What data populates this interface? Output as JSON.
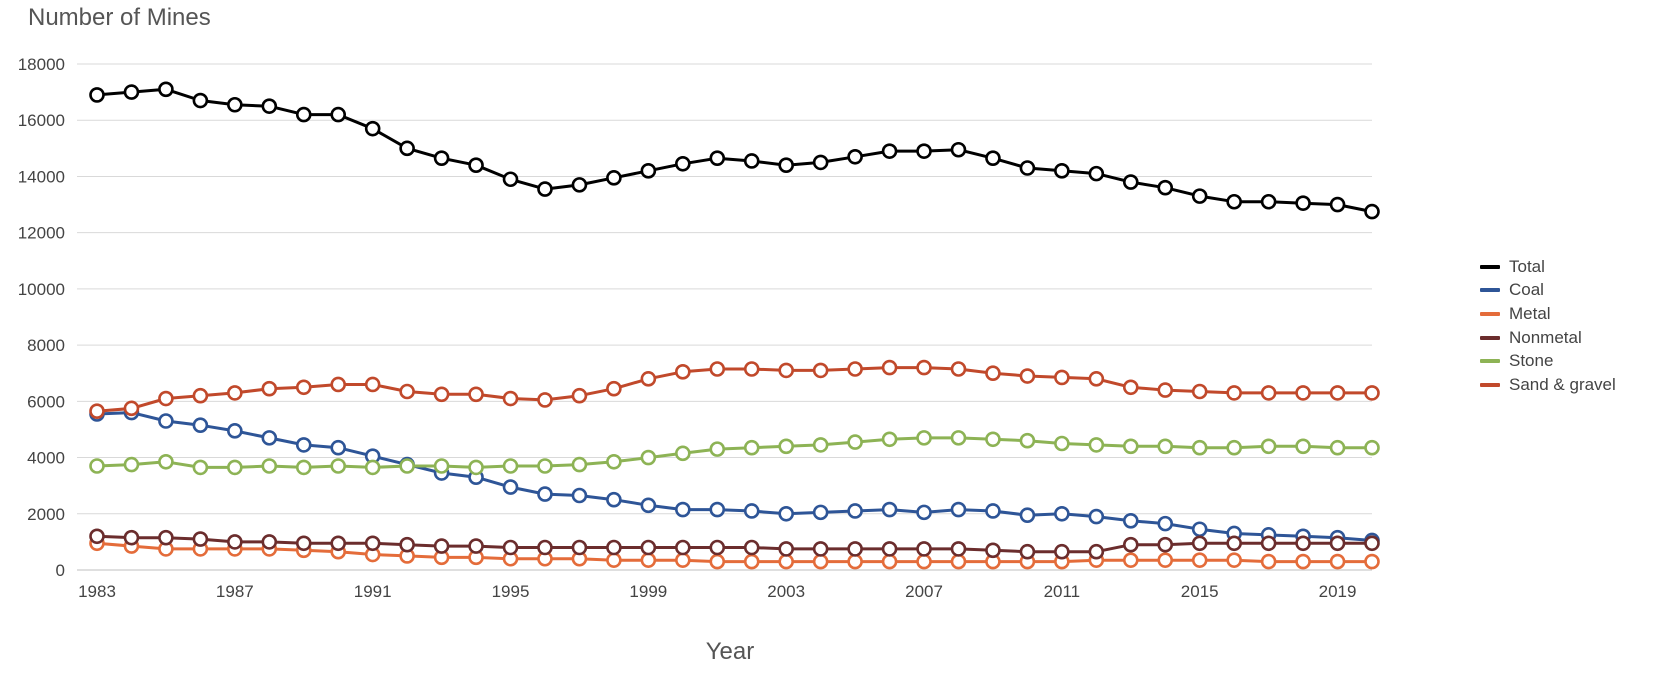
{
  "chart_data": {
    "type": "line",
    "ylabel": "Number of Mines",
    "xlabel": "Year",
    "ylim": [
      0,
      18000
    ],
    "xlim": [
      1983,
      2020
    ],
    "yticks": [
      "0",
      "2000",
      "4000",
      "6000",
      "8000",
      "10000",
      "12000",
      "14000",
      "16000",
      "18000"
    ],
    "xticks": [
      "1983",
      "1987",
      "1991",
      "1995",
      "1999",
      "2003",
      "2007",
      "2011",
      "2015",
      "2019"
    ],
    "grid": "horizontal",
    "legend_position": "right",
    "x": [
      1983,
      1984,
      1985,
      1986,
      1987,
      1988,
      1989,
      1990,
      1991,
      1992,
      1993,
      1994,
      1995,
      1996,
      1997,
      1998,
      1999,
      2000,
      2001,
      2002,
      2003,
      2004,
      2005,
      2006,
      2007,
      2008,
      2009,
      2010,
      2011,
      2012,
      2013,
      2014,
      2015,
      2016,
      2017,
      2018,
      2019,
      2020
    ],
    "series": [
      {
        "name": "Total",
        "color": "#000000",
        "values": [
          16900,
          17000,
          17100,
          16700,
          16550,
          16500,
          16200,
          16200,
          15700,
          15000,
          14650,
          14400,
          13900,
          13550,
          13700,
          13950,
          14200,
          14450,
          14650,
          14550,
          14400,
          14500,
          14700,
          14900,
          14900,
          14950,
          14650,
          14300,
          14200,
          14100,
          13800,
          13600,
          13300,
          13100,
          13100,
          13050,
          13000,
          12750
        ]
      },
      {
        "name": "Coal",
        "color": "#2e5597",
        "values": [
          5550,
          5600,
          5300,
          5150,
          4950,
          4700,
          4450,
          4350,
          4050,
          3750,
          3450,
          3300,
          2950,
          2700,
          2650,
          2500,
          2300,
          2150,
          2150,
          2100,
          2000,
          2050,
          2100,
          2150,
          2050,
          2150,
          2100,
          1950,
          2000,
          1900,
          1750,
          1650,
          1450,
          1300,
          1250,
          1200,
          1150,
          1050
        ]
      },
      {
        "name": "Metal",
        "color": "#e46c3a",
        "values": [
          950,
          850,
          750,
          750,
          750,
          750,
          700,
          650,
          550,
          500,
          450,
          450,
          400,
          400,
          400,
          350,
          350,
          350,
          300,
          300,
          300,
          300,
          300,
          300,
          300,
          300,
          300,
          300,
          300,
          350,
          350,
          350,
          350,
          350,
          300,
          300,
          300,
          300
        ]
      },
      {
        "name": "Nonmetal",
        "color": "#6b2d2d",
        "values": [
          1200,
          1150,
          1150,
          1100,
          1000,
          1000,
          950,
          950,
          950,
          900,
          850,
          850,
          800,
          800,
          800,
          800,
          800,
          800,
          800,
          800,
          750,
          750,
          750,
          750,
          750,
          750,
          700,
          650,
          650,
          650,
          900,
          900,
          950,
          950,
          950,
          950,
          950,
          950
        ]
      },
      {
        "name": "Stone",
        "color": "#8db355",
        "values": [
          3700,
          3750,
          3850,
          3650,
          3650,
          3700,
          3650,
          3700,
          3650,
          3700,
          3700,
          3650,
          3700,
          3700,
          3750,
          3850,
          4000,
          4150,
          4300,
          4350,
          4400,
          4450,
          4550,
          4650,
          4700,
          4700,
          4650,
          4600,
          4500,
          4450,
          4400,
          4400,
          4350,
          4350,
          4400,
          4400,
          4350,
          4350
        ]
      },
      {
        "name": "Sand & gravel",
        "color": "#c1492b",
        "values": [
          5650,
          5750,
          6100,
          6200,
          6300,
          6450,
          6500,
          6600,
          6600,
          6350,
          6250,
          6250,
          6100,
          6050,
          6200,
          6450,
          6800,
          7050,
          7150,
          7150,
          7100,
          7100,
          7150,
          7200,
          7200,
          7150,
          7000,
          6900,
          6850,
          6800,
          6500,
          6400,
          6350,
          6300,
          6300,
          6300,
          6300,
          6300
        ]
      }
    ]
  }
}
